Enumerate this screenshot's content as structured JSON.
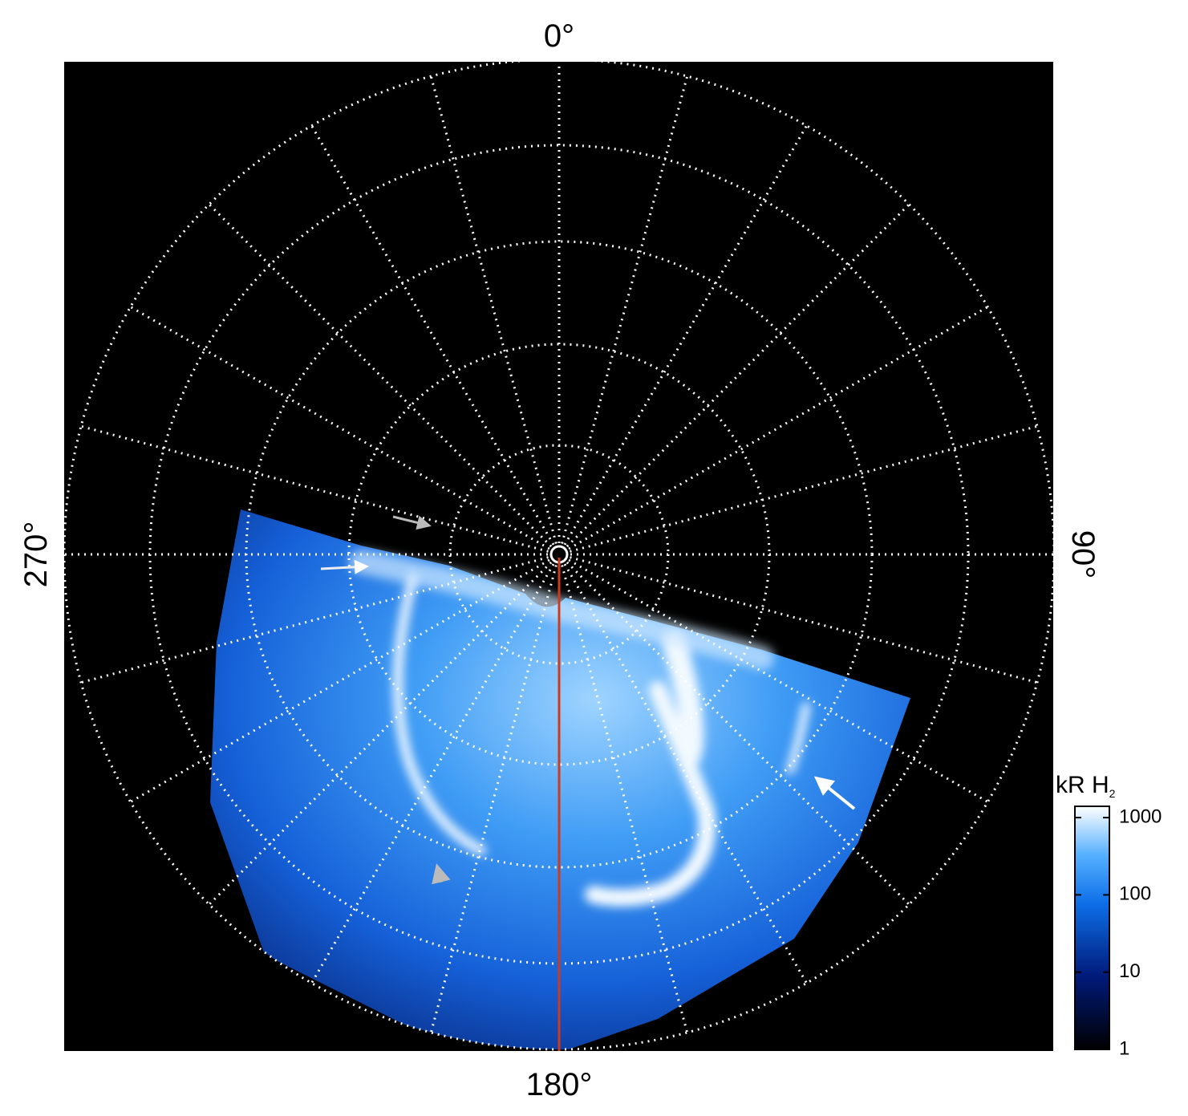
{
  "polar_labels": {
    "top": "0°",
    "right": "90°",
    "bottom": "180°",
    "left": "270°"
  },
  "colorbar": {
    "label": "kR H",
    "label_sub": "2",
    "scale": "log",
    "lim": [
      1,
      1400
    ],
    "ticks": [
      1,
      10,
      100,
      1000
    ]
  }
}
